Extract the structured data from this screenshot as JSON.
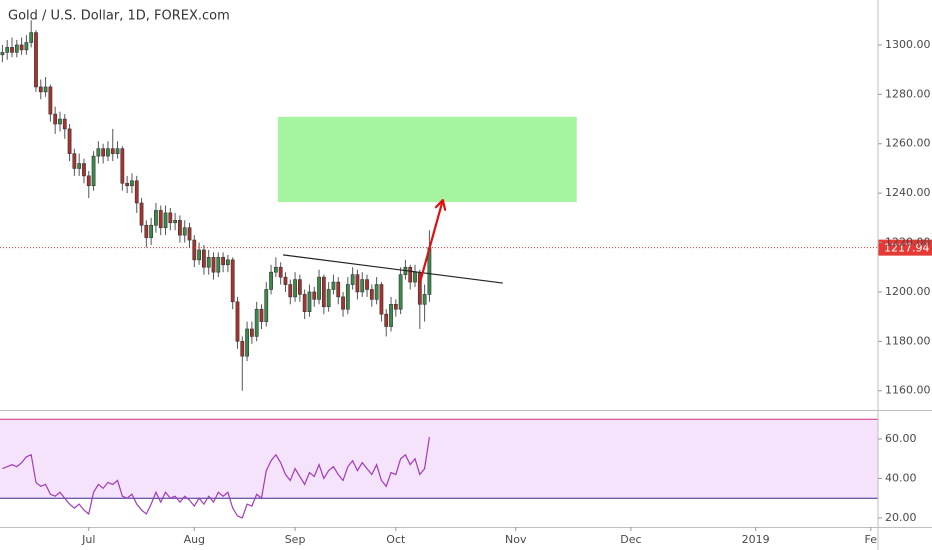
{
  "chart_data": {
    "type": "candlestick",
    "title": "Gold / U.S. Dollar, 1D, FOREX.com",
    "open": [
      1296,
      1297,
      1299,
      1297,
      1300,
      1298,
      1301,
      1305,
      1283,
      1281,
      1283,
      1272,
      1268,
      1270,
      1266,
      1256,
      1250,
      1252,
      1247,
      1243,
      1255,
      1258,
      1255,
      1258,
      1256,
      1258,
      1244,
      1243,
      1245,
      1236,
      1227,
      1222,
      1227,
      1233,
      1226,
      1232,
      1228,
      1229,
      1223,
      1226,
      1221,
      1213,
      1217,
      1210,
      1214,
      1208,
      1214,
      1211,
      1213,
      1196,
      1180,
      1174,
      1185,
      1182,
      1193,
      1188,
      1201,
      1208,
      1210,
      1206,
      1203,
      1198,
      1205,
      1199,
      1192,
      1200,
      1197,
      1206,
      1194,
      1201,
      1204,
      1198,
      1193,
      1203,
      1207,
      1200,
      1205,
      1201,
      1197,
      1203,
      1191,
      1186,
      1195,
      1193,
      1207,
      1210,
      1204,
      1208,
      1195,
      1199
    ],
    "high": [
      1300,
      1302,
      1303,
      1302,
      1303,
      1304,
      1310,
      1306,
      1286,
      1287,
      1284,
      1275,
      1273,
      1272,
      1268,
      1258,
      1256,
      1254,
      1249,
      1257,
      1261,
      1260,
      1261,
      1266,
      1261,
      1259,
      1247,
      1248,
      1247,
      1238,
      1229,
      1230,
      1236,
      1235,
      1235,
      1234,
      1232,
      1231,
      1229,
      1228,
      1223,
      1220,
      1219,
      1217,
      1216,
      1216,
      1216,
      1215,
      1214,
      1198,
      1182,
      1188,
      1188,
      1196,
      1195,
      1204,
      1211,
      1214,
      1212,
      1208,
      1205,
      1208,
      1207,
      1201,
      1203,
      1202,
      1209,
      1207,
      1204,
      1207,
      1206,
      1200,
      1206,
      1210,
      1209,
      1208,
      1207,
      1203,
      1206,
      1204,
      1193,
      1198,
      1197,
      1210,
      1213,
      1211,
      1211,
      1209,
      1203,
      1225
    ],
    "low": [
      1293,
      1294,
      1295,
      1295,
      1296,
      1296,
      1299,
      1281,
      1278,
      1279,
      1269,
      1264,
      1265,
      1262,
      1253,
      1247,
      1247,
      1244,
      1238,
      1241,
      1252,
      1252,
      1253,
      1253,
      1254,
      1241,
      1240,
      1240,
      1232,
      1224,
      1218,
      1219,
      1224,
      1223,
      1223,
      1225,
      1225,
      1220,
      1220,
      1218,
      1210,
      1211,
      1207,
      1207,
      1205,
      1206,
      1208,
      1208,
      1193,
      1177,
      1160,
      1172,
      1179,
      1180,
      1185,
      1186,
      1199,
      1206,
      1203,
      1200,
      1195,
      1196,
      1196,
      1189,
      1190,
      1194,
      1195,
      1191,
      1192,
      1199,
      1195,
      1190,
      1191,
      1201,
      1197,
      1198,
      1198,
      1194,
      1195,
      1188,
      1182,
      1184,
      1190,
      1191,
      1205,
      1201,
      1202,
      1185,
      1188,
      1196
    ],
    "close": [
      1297,
      1299,
      1297,
      1300,
      1298,
      1301,
      1305,
      1283,
      1281,
      1283,
      1272,
      1268,
      1270,
      1266,
      1256,
      1250,
      1252,
      1247,
      1243,
      1255,
      1258,
      1255,
      1258,
      1256,
      1258,
      1244,
      1243,
      1245,
      1236,
      1227,
      1222,
      1227,
      1233,
      1226,
      1232,
      1228,
      1229,
      1223,
      1226,
      1221,
      1213,
      1217,
      1210,
      1214,
      1208,
      1214,
      1211,
      1213,
      1196,
      1180,
      1174,
      1185,
      1182,
      1193,
      1188,
      1201,
      1208,
      1210,
      1206,
      1203,
      1198,
      1205,
      1199,
      1192,
      1200,
      1197,
      1206,
      1194,
      1201,
      1204,
      1198,
      1193,
      1203,
      1207,
      1200,
      1205,
      1201,
      1197,
      1203,
      1191,
      1186,
      1195,
      1193,
      1207,
      1210,
      1204,
      1208,
      1195,
      1199,
      1217.94
    ],
    "up_color": "#3b8a4a",
    "down_color": "#a8322d",
    "xlim": [
      -0.5,
      182.5
    ],
    "xticks": [
      {
        "value": 18,
        "label": "Jul"
      },
      {
        "value": 40,
        "label": "Aug"
      },
      {
        "value": 61,
        "label": "Sep"
      },
      {
        "value": 82,
        "label": "Oct"
      },
      {
        "value": 107,
        "label": "Nov"
      },
      {
        "value": 131,
        "label": "Dec"
      },
      {
        "value": 157,
        "label": "2019"
      },
      {
        "value": 181,
        "label": "Fe"
      }
    ],
    "ylim": [
      1152.2,
      1318.2
    ],
    "yticks": [
      {
        "value": 1160,
        "label": "1160.00"
      },
      {
        "value": 1180,
        "label": "1180.00"
      },
      {
        "value": 1200,
        "label": "1200.00"
      },
      {
        "value": 1220,
        "label": "1220.00"
      },
      {
        "value": 1240,
        "label": "1240.00"
      },
      {
        "value": 1260,
        "label": "1260.00"
      },
      {
        "value": 1280,
        "label": "1280.00"
      },
      {
        "value": 1300,
        "label": "1300.00"
      }
    ],
    "last_price": 1217.94,
    "last_price_color": "#e53935",
    "zone": {
      "x": [
        57.4,
        119.7
      ],
      "y": [
        1236.4,
        1270.9
      ],
      "color": "#a5f5a0"
    },
    "trendline": {
      "x": [
        58.5,
        104.3
      ],
      "y": [
        1215,
        1203.6
      ],
      "color": "#222222"
    },
    "arrow": {
      "x": [
        87,
        91.8
      ],
      "y": [
        1203.6,
        1237.2
      ],
      "color": "#e01010"
    },
    "rsi": {
      "values": [
        45,
        46,
        47,
        46,
        48,
        51,
        52,
        38,
        36,
        37,
        32,
        31,
        33,
        30,
        27,
        25,
        27,
        24,
        22,
        33,
        37,
        35,
        38,
        37,
        39,
        31,
        30,
        32,
        27,
        24,
        22,
        27,
        33,
        28,
        33,
        30,
        31,
        28,
        31,
        29,
        26,
        30,
        27,
        31,
        28,
        33,
        31,
        33,
        25,
        21,
        20,
        27,
        26,
        32,
        30,
        44,
        49,
        52,
        48,
        42,
        39,
        45,
        41,
        37,
        43,
        41,
        47,
        40,
        44,
        46,
        42,
        39,
        46,
        49,
        44,
        48,
        45,
        42,
        47,
        39,
        36,
        43,
        42,
        50,
        52,
        47,
        50,
        42,
        45,
        61
      ],
      "color": "#a03cb8",
      "ylim": [
        15.4,
        73.7
      ],
      "yticks": [
        {
          "value": 20,
          "label": "20.00"
        },
        {
          "value": 40,
          "label": "40.00"
        },
        {
          "value": 60,
          "label": "60.00"
        }
      ],
      "bands": [
        30,
        70
      ],
      "band_colors": [
        "#3a2a8c",
        "#d0307a"
      ],
      "fill": "#f4e3fb"
    }
  }
}
